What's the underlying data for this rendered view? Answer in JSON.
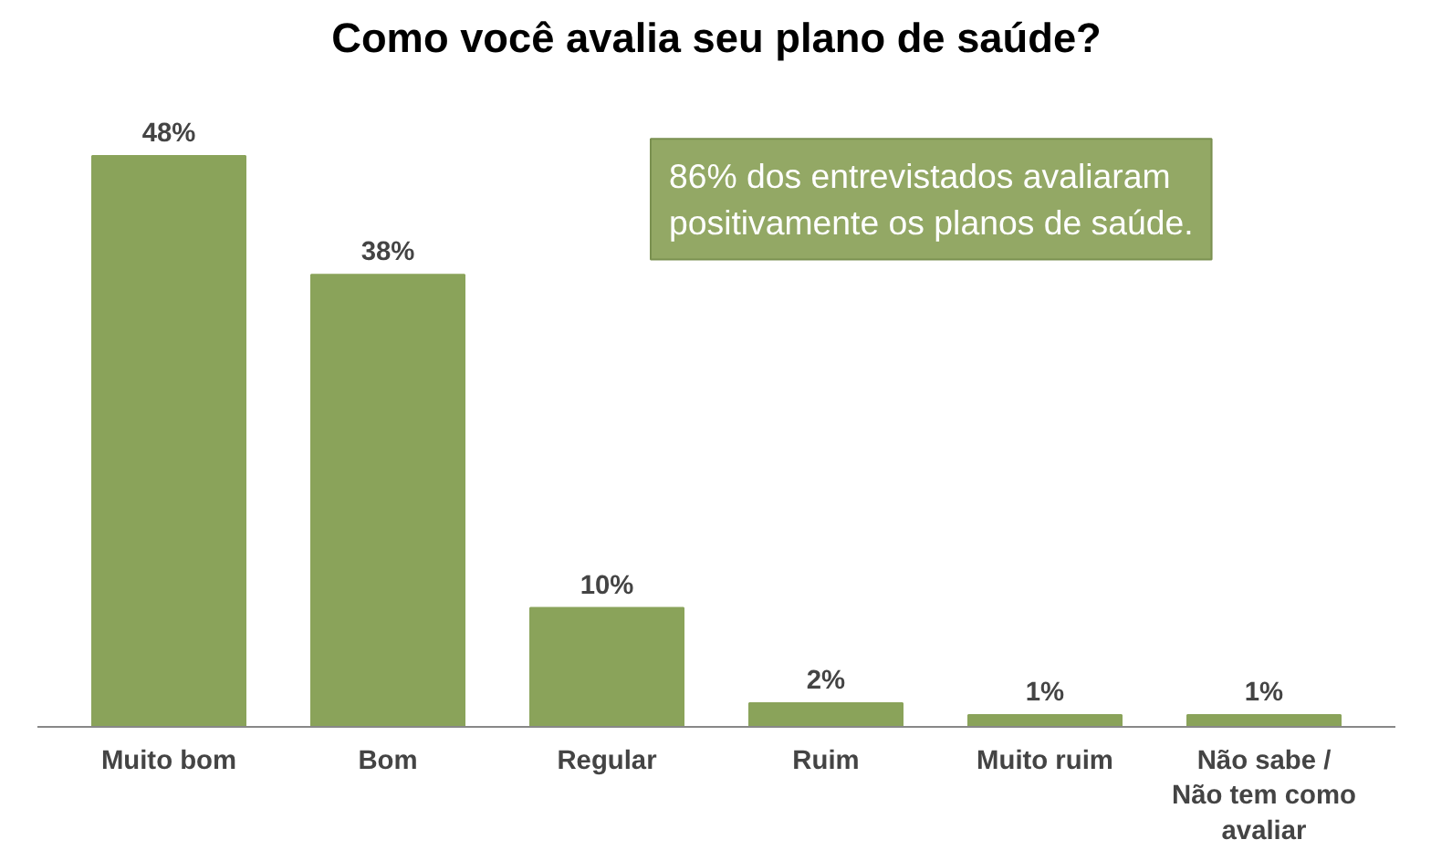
{
  "chart_data": {
    "type": "bar",
    "title": "Como você avalia seu plano de saúde?",
    "categories": [
      "Muito bom",
      "Bom",
      "Regular",
      "Ruim",
      "Muito ruim",
      "Não sabe / Não tem como avaliar"
    ],
    "values": [
      48,
      38,
      10,
      2,
      1,
      1
    ],
    "color": "#8aa35a",
    "value_labels": [
      "48%",
      "38%",
      "10%",
      "2%",
      "1%",
      "1%"
    ],
    "annotations": [
      "86% dos entrevistados avaliaram positivamente os planos de saúde."
    ]
  }
}
